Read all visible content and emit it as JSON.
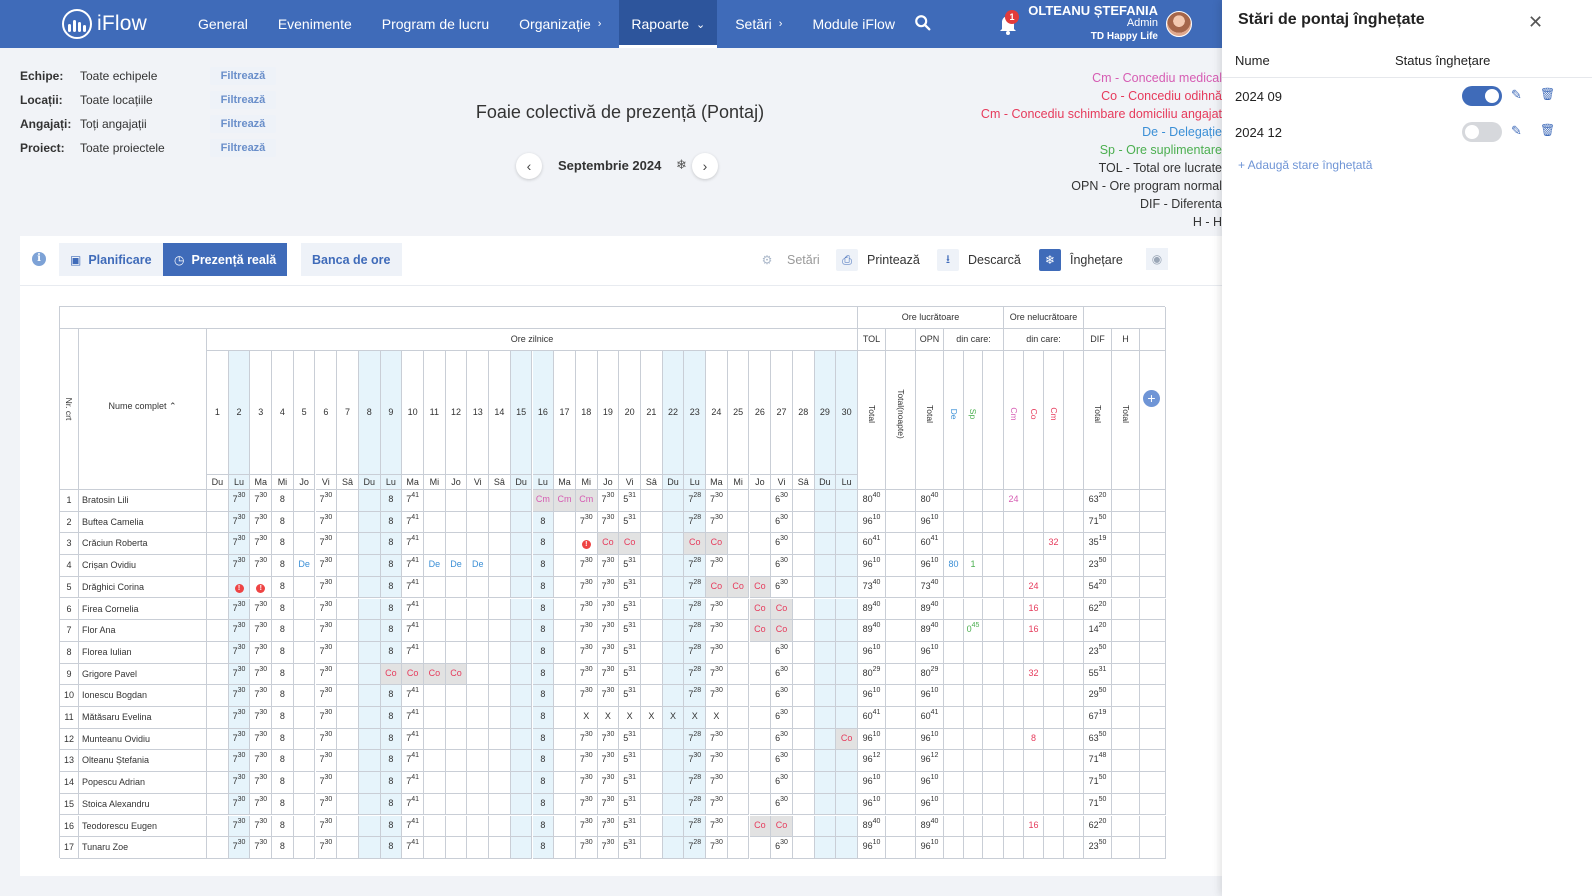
{
  "nav": {
    "logo": "iFlow",
    "items": [
      {
        "label": "General",
        "chevron": ""
      },
      {
        "label": "Evenimente",
        "chevron": ""
      },
      {
        "label": "Program de lucru",
        "chevron": ""
      },
      {
        "label": "Organizație",
        "chevron": "›"
      },
      {
        "label": "Rapoarte",
        "chevron": "⌄",
        "active": true
      },
      {
        "label": "Setări",
        "chevron": "›"
      },
      {
        "label": "Module iFlow",
        "chevron": ""
      }
    ],
    "notifications": "1",
    "user": {
      "name": "OLTEANU ȘTEFANIA",
      "role": "Admin",
      "company": "TD Happy Life"
    }
  },
  "filters": [
    {
      "label": "Echipe:",
      "value": "Toate echipele",
      "button": "Filtrează"
    },
    {
      "label": "Locații:",
      "value": "Toate locațiile",
      "button": "Filtrează"
    },
    {
      "label": "Angajați:",
      "value": "Toți angajații",
      "button": "Filtrează"
    },
    {
      "label": "Proiect:",
      "value": "Toate proiectele",
      "button": "Filtrează"
    }
  ],
  "title": "Foaie colectivă de prezență (Pontaj)",
  "month": "Septembrie 2024",
  "legend": [
    {
      "text": "Cm - Concediu medical",
      "color": "#d65cb3"
    },
    {
      "text": "Co - Concediu odihnă",
      "color": "#e63b5c"
    },
    {
      "text": "Cm - Concediu schimbare domiciliu angajat",
      "color": "#e63b5c"
    },
    {
      "text": "De - Delegație",
      "color": "#3b8fd6"
    },
    {
      "text": "Sp - Ore suplimentare",
      "color": "#4caf50"
    },
    {
      "text": "TOL - Total ore lucrate",
      "color": "#333333"
    },
    {
      "text": "OPN - Ore program normal",
      "color": "#333333"
    },
    {
      "text": "DIF - Diferenta",
      "color": "#333333"
    },
    {
      "text": "H - H",
      "color": "#333333"
    }
  ],
  "toolbar": {
    "tabs": [
      "Planificare",
      "Prezență reală",
      "Banca de ore"
    ],
    "settings": "Setări",
    "print": "Printează",
    "download": "Descarcă",
    "freeze": "Înghețare"
  },
  "table": {
    "group_worked": "Ore lucrătoare",
    "group_notworked": "Ore nelucrătoare",
    "daily_hours": "Ore zilnice",
    "col_nr": "Nr. crt",
    "col_name": "Nume complet",
    "col_tol": "TOL",
    "col_opn": "OPN",
    "col_dincare": "din care:",
    "col_dif": "DIF",
    "col_h": "H",
    "col_total": "Total",
    "col_total_night": "Total(noapte)",
    "col_de": "De",
    "col_sp": "Sp",
    "col_cm": "Cm",
    "col_co": "Co",
    "col_cm2": "Cm",
    "days": [
      "1",
      "2",
      "3",
      "4",
      "5",
      "6",
      "7",
      "8",
      "9",
      "10",
      "11",
      "12",
      "13",
      "14",
      "15",
      "16",
      "17",
      "18",
      "19",
      "20",
      "21",
      "22",
      "23",
      "24",
      "25",
      "26",
      "27",
      "28",
      "29",
      "30"
    ],
    "weekdays": [
      "Du",
      "Lu",
      "Ma",
      "Mi",
      "Jo",
      "Vi",
      "Sâ",
      "Du",
      "Lu",
      "Ma",
      "Mi",
      "Jo",
      "Vi",
      "Sâ",
      "Du",
      "Lu",
      "Ma",
      "Mi",
      "Jo",
      "Vi",
      "Sâ",
      "Du",
      "Lu",
      "Ma",
      "Mi",
      "Jo",
      "Vi",
      "Sâ",
      "Du",
      "Lu"
    ],
    "weekend_days": [
      1,
      7,
      8,
      14,
      15,
      21,
      22,
      28,
      29
    ],
    "rows": [
      {
        "nr": "1",
        "name": "Bratosin Lili",
        "days": [
          "",
          "7|30",
          "7|30",
          "8",
          "",
          "7|30",
          "",
          "",
          "8",
          "7|41",
          "",
          "",
          "",
          "",
          "",
          "Cm",
          "Cm",
          "Cm",
          "7|30",
          "5|31",
          "",
          "",
          "7|28",
          "7|30",
          "",
          "",
          "6|30",
          "",
          "",
          ""
        ],
        "tol": "80|40",
        "tn": "",
        "opn": "80|40",
        "de": "",
        "sp": "",
        "cm": "24",
        "co": "",
        "cm2": "",
        "dif": "63|20",
        "h": ""
      },
      {
        "nr": "2",
        "name": "Buftea Camelia",
        "days": [
          "",
          "7|30",
          "7|30",
          "8",
          "",
          "7|30",
          "",
          "",
          "8",
          "7|41",
          "",
          "",
          "",
          "",
          "",
          "8",
          "",
          "7|30",
          "7|30",
          "5|31",
          "",
          "",
          "7|28",
          "7|30",
          "",
          "",
          "6|30",
          "",
          "",
          ""
        ],
        "tol": "96|10",
        "tn": "",
        "opn": "96|10",
        "de": "",
        "sp": "",
        "cm": "",
        "co": "",
        "cm2": "",
        "dif": "71|50",
        "h": ""
      },
      {
        "nr": "3",
        "name": "Crăciun Roberta",
        "days": [
          "",
          "7|30",
          "7|30",
          "8",
          "",
          "7|30",
          "",
          "",
          "8",
          "7|41",
          "",
          "",
          "",
          "",
          "",
          "8",
          "",
          "!",
          "Co",
          "Co",
          "",
          "",
          "Co",
          "Co",
          "",
          "",
          "6|30",
          "",
          "",
          ""
        ],
        "tol": "60|41",
        "tn": "",
        "opn": "60|41",
        "de": "",
        "sp": "",
        "cm": "",
        "co": "",
        "cm2": "32",
        "dif": "35|19",
        "h": ""
      },
      {
        "nr": "4",
        "name": "Crișan Ovidiu",
        "days": [
          "",
          "7|30",
          "7|30",
          "8",
          "De",
          "7|30",
          "",
          "",
          "8",
          "7|41",
          "De",
          "De",
          "De",
          "",
          "",
          "8",
          "",
          "7|30",
          "7|30",
          "5|31",
          "",
          "",
          "7|28",
          "7|30",
          "",
          "",
          "6|30",
          "",
          "",
          ""
        ],
        "tol": "96|10",
        "tn": "",
        "opn": "96|10",
        "de": "80",
        "sp": "1",
        "cm": "",
        "co": "",
        "cm2": "",
        "dif": "23|50",
        "h": ""
      },
      {
        "nr": "5",
        "name": "Drăghici Corina",
        "days": [
          "",
          "!",
          "!",
          "8",
          "",
          "7|30",
          "",
          "",
          "8",
          "7|41",
          "",
          "",
          "",
          "",
          "",
          "8",
          "",
          "7|30",
          "7|30",
          "5|31",
          "",
          "",
          "7|28",
          "Co",
          "Co",
          "Co",
          "6|30",
          "",
          "",
          ""
        ],
        "tol": "73|40",
        "tn": "",
        "opn": "73|40",
        "de": "",
        "sp": "",
        "cm": "",
        "co": "24",
        "cm2": "",
        "dif": "54|20",
        "h": ""
      },
      {
        "nr": "6",
        "name": "Firea Cornelia",
        "days": [
          "",
          "7|30",
          "7|30",
          "8",
          "",
          "7|30",
          "",
          "",
          "8",
          "7|41",
          "",
          "",
          "",
          "",
          "",
          "8",
          "",
          "7|30",
          "7|30",
          "5|31",
          "",
          "",
          "7|28",
          "7|30",
          "",
          "Co",
          "Co",
          "",
          "",
          ""
        ],
        "tol": "89|40",
        "tn": "",
        "opn": "89|40",
        "de": "",
        "sp": "",
        "cm": "",
        "co": "16",
        "cm2": "",
        "dif": "62|20",
        "h": ""
      },
      {
        "nr": "7",
        "name": "Flor Ana",
        "days": [
          "",
          "7|30",
          "7|30",
          "8",
          "",
          "7|30",
          "",
          "",
          "8",
          "7|41",
          "",
          "",
          "",
          "",
          "",
          "8",
          "",
          "7|30",
          "7|30",
          "5|31",
          "",
          "",
          "7|28",
          "7|30",
          "",
          "Co",
          "Co",
          "",
          "",
          ""
        ],
        "tol": "89|40",
        "tn": "",
        "opn": "89|40",
        "de": "",
        "sp": "0|45",
        "cm": "",
        "co": "16",
        "cm2": "",
        "dif": "14|20",
        "h": ""
      },
      {
        "nr": "8",
        "name": "Florea Iulian",
        "days": [
          "",
          "7|30",
          "7|30",
          "8",
          "",
          "7|30",
          "",
          "",
          "8",
          "7|41",
          "",
          "",
          "",
          "",
          "",
          "8",
          "",
          "7|30",
          "7|30",
          "5|31",
          "",
          "",
          "7|28",
          "7|30",
          "",
          "",
          "6|30",
          "",
          "",
          ""
        ],
        "tol": "96|10",
        "tn": "",
        "opn": "96|10",
        "de": "",
        "sp": "",
        "cm": "",
        "co": "",
        "cm2": "",
        "dif": "23|50",
        "h": ""
      },
      {
        "nr": "9",
        "name": "Grigore Pavel",
        "days": [
          "",
          "7|30",
          "7|30",
          "8",
          "",
          "7|30",
          "",
          "",
          "Co",
          "Co",
          "Co",
          "Co",
          "",
          "",
          "",
          "8",
          "",
          "7|30",
          "7|30",
          "5|31",
          "",
          "",
          "7|28",
          "7|30",
          "",
          "",
          "6|30",
          "",
          "",
          ""
        ],
        "tol": "80|29",
        "tn": "",
        "opn": "80|29",
        "de": "",
        "sp": "",
        "cm": "",
        "co": "32",
        "cm2": "",
        "dif": "55|31",
        "h": ""
      },
      {
        "nr": "10",
        "name": "Ionescu Bogdan",
        "days": [
          "",
          "7|30",
          "7|30",
          "8",
          "",
          "7|30",
          "",
          "",
          "8",
          "7|41",
          "",
          "",
          "",
          "",
          "",
          "8",
          "",
          "7|30",
          "7|30",
          "5|31",
          "",
          "",
          "7|28",
          "7|30",
          "",
          "",
          "6|30",
          "",
          "",
          ""
        ],
        "tol": "96|10",
        "tn": "",
        "opn": "96|10",
        "de": "",
        "sp": "",
        "cm": "",
        "co": "",
        "cm2": "",
        "dif": "29|50",
        "h": ""
      },
      {
        "nr": "11",
        "name": "Mătăsaru Evelina",
        "days": [
          "",
          "7|30",
          "7|30",
          "8",
          "",
          "7|30",
          "",
          "",
          "8",
          "7|41",
          "",
          "",
          "",
          "",
          "",
          "8",
          "",
          "X",
          "X",
          "X",
          "X",
          "X",
          "X",
          "X",
          "",
          "",
          "6|30",
          "",
          "",
          ""
        ],
        "tol": "60|41",
        "tn": "",
        "opn": "60|41",
        "de": "",
        "sp": "",
        "cm": "",
        "co": "",
        "cm2": "",
        "dif": "67|19",
        "h": ""
      },
      {
        "nr": "12",
        "name": "Munteanu Ovidiu",
        "days": [
          "",
          "7|30",
          "7|30",
          "8",
          "",
          "7|30",
          "",
          "",
          "8",
          "7|41",
          "",
          "",
          "",
          "",
          "",
          "8",
          "",
          "7|30",
          "7|30",
          "5|31",
          "",
          "",
          "7|28",
          "7|30",
          "",
          "",
          "6|30",
          "",
          "",
          "Co"
        ],
        "tol": "96|10",
        "tn": "",
        "opn": "96|10",
        "de": "",
        "sp": "",
        "cm": "",
        "co": "8",
        "cm2": "",
        "dif": "63|50",
        "h": ""
      },
      {
        "nr": "13",
        "name": "Olteanu Ștefania",
        "days": [
          "",
          "7|30",
          "7|30",
          "8",
          "",
          "7|30",
          "",
          "",
          "8",
          "7|41",
          "",
          "",
          "",
          "",
          "",
          "8",
          "",
          "7|30",
          "7|30",
          "5|31",
          "",
          "",
          "7|30",
          "7|30",
          "",
          "",
          "6|30",
          "",
          "",
          ""
        ],
        "tol": "96|12",
        "tn": "",
        "opn": "96|12",
        "de": "",
        "sp": "",
        "cm": "",
        "co": "",
        "cm2": "",
        "dif": "71|48",
        "h": ""
      },
      {
        "nr": "14",
        "name": "Popescu Adrian",
        "days": [
          "",
          "7|30",
          "7|30",
          "8",
          "",
          "7|30",
          "",
          "",
          "8",
          "7|41",
          "",
          "",
          "",
          "",
          "",
          "8",
          "",
          "7|30",
          "7|30",
          "5|31",
          "",
          "",
          "7|28",
          "7|30",
          "",
          "",
          "6|30",
          "",
          "",
          ""
        ],
        "tol": "96|10",
        "tn": "",
        "opn": "96|10",
        "de": "",
        "sp": "",
        "cm": "",
        "co": "",
        "cm2": "",
        "dif": "71|50",
        "h": ""
      },
      {
        "nr": "15",
        "name": "Stoica Alexandru",
        "days": [
          "",
          "7|30",
          "7|30",
          "8",
          "",
          "7|30",
          "",
          "",
          "8",
          "7|41",
          "",
          "",
          "",
          "",
          "",
          "8",
          "",
          "7|30",
          "7|30",
          "5|31",
          "",
          "",
          "7|28",
          "7|30",
          "",
          "",
          "6|30",
          "",
          "",
          ""
        ],
        "tol": "96|10",
        "tn": "",
        "opn": "96|10",
        "de": "",
        "sp": "",
        "cm": "",
        "co": "",
        "cm2": "",
        "dif": "71|50",
        "h": ""
      },
      {
        "nr": "16",
        "name": "Teodorescu Eugen",
        "days": [
          "",
          "7|30",
          "7|30",
          "8",
          "",
          "7|30",
          "",
          "",
          "8",
          "7|41",
          "",
          "",
          "",
          "",
          "",
          "8",
          "",
          "7|30",
          "7|30",
          "5|31",
          "",
          "",
          "7|28",
          "7|30",
          "",
          "Co",
          "Co",
          "",
          "",
          ""
        ],
        "tol": "89|40",
        "tn": "",
        "opn": "89|40",
        "de": "",
        "sp": "",
        "cm": "",
        "co": "16",
        "cm2": "",
        "dif": "62|20",
        "h": ""
      },
      {
        "nr": "17",
        "name": "Tunaru Zoe",
        "days": [
          "",
          "7|30",
          "7|30",
          "8",
          "",
          "7|30",
          "",
          "",
          "8",
          "7|41",
          "",
          "",
          "",
          "",
          "",
          "8",
          "",
          "7|30",
          "7|30",
          "5|31",
          "",
          "",
          "7|28",
          "7|30",
          "",
          "",
          "6|30",
          "",
          "",
          ""
        ],
        "tol": "96|10",
        "tn": "",
        "opn": "96|10",
        "de": "",
        "sp": "",
        "cm": "",
        "co": "",
        "cm2": "",
        "dif": "23|50",
        "h": ""
      }
    ]
  },
  "panel": {
    "title": "Stări de pontaj înghețate",
    "col_name": "Nume",
    "col_status": "Status înghețare",
    "rows": [
      {
        "name": "2024 09",
        "on": true
      },
      {
        "name": "2024 12",
        "on": false
      }
    ],
    "add": "+ Adaugă stare înghețată"
  }
}
